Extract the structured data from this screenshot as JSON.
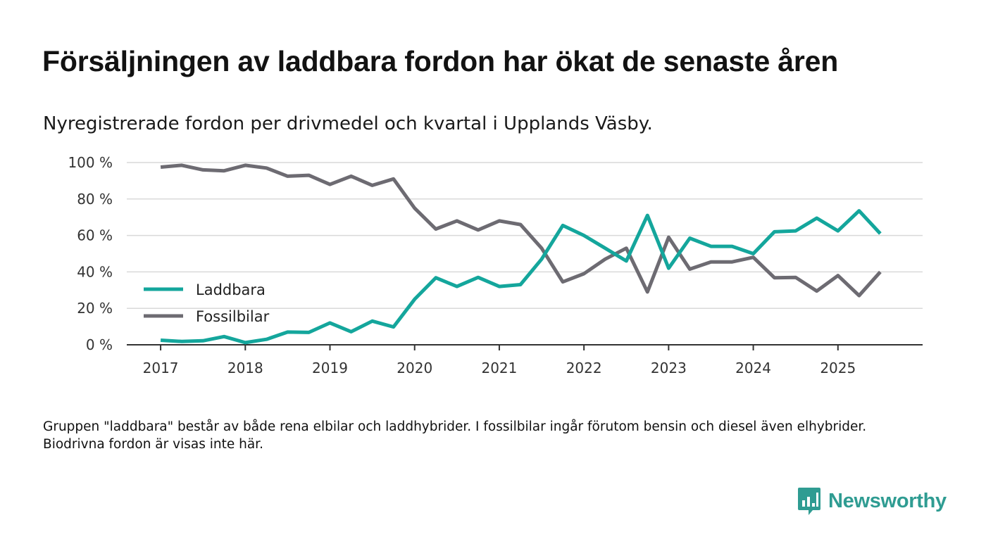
{
  "header": {
    "title": "Försäljningen av laddbara fordon har ökat de senaste åren",
    "subtitle": "Nyregistrerade fordon per drivmedel och kvartal i Upplands Väsby."
  },
  "footnote": "Gruppen \"laddbara\" består av både rena elbilar och laddhybrider. I fossilbilar ingår förutom bensin och diesel även elhybrider. Biodrivna fordon är visas inte här.",
  "brand": {
    "name": "Newsworthy",
    "icon": "newsworthy-logo-icon",
    "color": "#2f9c92"
  },
  "chart_data": {
    "type": "line",
    "title": "Försäljningen av laddbara fordon har ökat de senaste åren",
    "subtitle": "Nyregistrerade fordon per drivmedel och kvartal i Upplands Väsby.",
    "xlabel": "",
    "ylabel": "",
    "x_start": 2017.0,
    "x_step": 0.25,
    "xlim": [
      2016.6,
      2026.0
    ],
    "ylim": [
      0,
      100
    ],
    "x_ticks": [
      2017,
      2018,
      2019,
      2020,
      2021,
      2022,
      2023,
      2024,
      2025
    ],
    "x_tick_labels": [
      "2017",
      "2018",
      "2019",
      "2020",
      "2021",
      "2022",
      "2023",
      "2024",
      "2025"
    ],
    "y_ticks": [
      0,
      20,
      40,
      60,
      80,
      100
    ],
    "y_tick_labels": [
      "0 %",
      "20 %",
      "40 %",
      "60 %",
      "80 %",
      "100 %"
    ],
    "grid": true,
    "legend_position": "middle-left",
    "series": [
      {
        "name": "Laddbara",
        "color": "#14a69c",
        "values": [
          2.5,
          1.8,
          2.2,
          4.5,
          1.2,
          3.0,
          7.0,
          6.8,
          12.0,
          7.2,
          13.0,
          9.8,
          25.0,
          36.8,
          32.0,
          37.0,
          32.0,
          33.0,
          47.0,
          65.5,
          60.0,
          53.0,
          46.0,
          71.0,
          42.0,
          58.5,
          54.0,
          54.0,
          50.0,
          62.0,
          62.5,
          69.5,
          62.5,
          73.5,
          61.0
        ]
      },
      {
        "name": "Fossilbilar",
        "color": "#6d6b72",
        "values": [
          97.5,
          98.5,
          96.0,
          95.5,
          98.5,
          97.0,
          92.5,
          93.0,
          88.0,
          92.5,
          87.5,
          91.0,
          75.0,
          63.5,
          68.0,
          63.0,
          68.0,
          66.0,
          53.0,
          34.5,
          39.0,
          47.0,
          53.0,
          29.0,
          59.0,
          41.5,
          45.5,
          45.5,
          48.0,
          36.8,
          37.0,
          29.5,
          38.0,
          27.0,
          40.0
        ]
      }
    ]
  }
}
